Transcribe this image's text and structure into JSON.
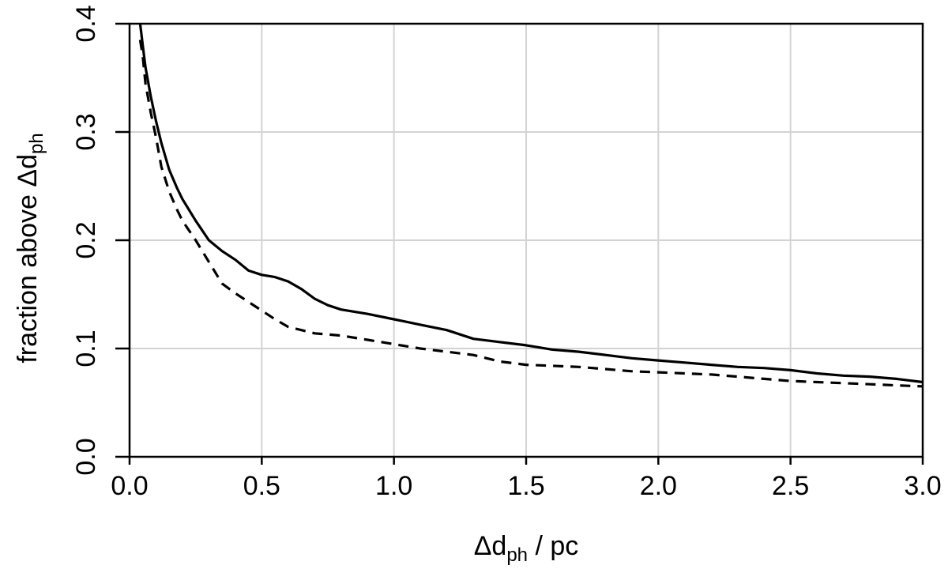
{
  "chart_data": {
    "type": "line",
    "title": "",
    "xlabel": {
      "prefix": "Δd",
      "sub": "ph",
      "suffix": " / pc"
    },
    "ylabel": {
      "prefix": "fraction above Δd",
      "sub": "ph",
      "suffix": ""
    },
    "xlim": [
      0.0,
      3.0
    ],
    "ylim": [
      0.0,
      0.4
    ],
    "x_ticks": [
      0.0,
      0.5,
      1.0,
      1.5,
      2.0,
      2.5,
      3.0
    ],
    "x_tick_labels": [
      "0.0",
      "0.5",
      "1.0",
      "1.5",
      "2.0",
      "2.5",
      "3.0"
    ],
    "y_ticks": [
      0.0,
      0.1,
      0.2,
      0.3,
      0.4
    ],
    "y_tick_labels": [
      "0.0",
      "0.1",
      "0.2",
      "0.3",
      "0.4"
    ],
    "grid": true,
    "legend": null,
    "series": [
      {
        "line_style": "solid",
        "color": "#000000",
        "x": [
          0.04,
          0.05,
          0.06,
          0.08,
          0.1,
          0.12,
          0.15,
          0.18,
          0.2,
          0.25,
          0.3,
          0.35,
          0.4,
          0.45,
          0.5,
          0.55,
          0.6,
          0.65,
          0.7,
          0.75,
          0.8,
          0.9,
          1.0,
          1.1,
          1.2,
          1.3,
          1.4,
          1.5,
          1.6,
          1.7,
          1.8,
          1.9,
          2.0,
          2.1,
          2.2,
          2.3,
          2.4,
          2.5,
          2.6,
          2.7,
          2.8,
          2.9,
          3.0
        ],
        "y": [
          0.4,
          0.38,
          0.36,
          0.333,
          0.31,
          0.29,
          0.265,
          0.248,
          0.238,
          0.218,
          0.2,
          0.19,
          0.182,
          0.172,
          0.168,
          0.166,
          0.162,
          0.155,
          0.146,
          0.14,
          0.136,
          0.132,
          0.127,
          0.122,
          0.117,
          0.109,
          0.106,
          0.103,
          0.099,
          0.097,
          0.094,
          0.091,
          0.089,
          0.087,
          0.085,
          0.083,
          0.082,
          0.08,
          0.077,
          0.075,
          0.074,
          0.072,
          0.069
        ]
      },
      {
        "line_style": "dashed",
        "color": "#000000",
        "x": [
          0.04,
          0.05,
          0.06,
          0.08,
          0.1,
          0.12,
          0.15,
          0.18,
          0.2,
          0.25,
          0.3,
          0.35,
          0.4,
          0.45,
          0.5,
          0.55,
          0.6,
          0.65,
          0.7,
          0.8,
          0.9,
          1.0,
          1.1,
          1.2,
          1.3,
          1.4,
          1.5,
          1.6,
          1.7,
          1.8,
          1.9,
          2.0,
          2.1,
          2.2,
          2.3,
          2.4,
          2.5,
          2.6,
          2.7,
          2.8,
          2.9,
          3.0
        ],
        "y": [
          0.385,
          0.37,
          0.345,
          0.318,
          0.295,
          0.268,
          0.245,
          0.228,
          0.218,
          0.2,
          0.18,
          0.16,
          0.151,
          0.143,
          0.135,
          0.127,
          0.12,
          0.117,
          0.114,
          0.112,
          0.108,
          0.104,
          0.1,
          0.097,
          0.094,
          0.088,
          0.085,
          0.084,
          0.083,
          0.081,
          0.079,
          0.078,
          0.077,
          0.076,
          0.074,
          0.072,
          0.07,
          0.069,
          0.068,
          0.067,
          0.066,
          0.065
        ]
      }
    ]
  }
}
